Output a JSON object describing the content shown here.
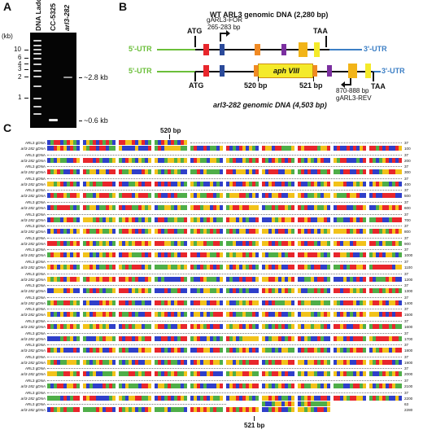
{
  "panels": {
    "a": "A",
    "b": "B",
    "c": "C"
  },
  "gel": {
    "kb_header": "(kb)",
    "lanes": [
      "DNA Ladder",
      "CC-5325",
      "arl3-282"
    ],
    "ladder_marks": [
      "10",
      "6",
      "4",
      "3",
      "2",
      "1"
    ],
    "band_labels": [
      "~2.8 kb",
      "~0.6 kb"
    ]
  },
  "diagram": {
    "wt_title": "WT ARL3 genomic DNA (2,280 bp)",
    "mut_title": "arl3-282 genomic DNA (4,503 bp)",
    "utr5": "5'-UTR",
    "utr3": "3'-UTR",
    "start_codon": "ATG",
    "stop_codon": "TAA",
    "fwd_primer": "gARL3-FOR",
    "fwd_range": "265-283 bp",
    "rev_range": "870-888 bp",
    "rev_primer": "gARL3-REV",
    "insert": "aph VIII",
    "junction_left": "520 bp",
    "junction_right": "521 bp",
    "colors": {
      "utr5": "#6bbf3a",
      "utr3": "#3c7fc5",
      "exon_red": "#e8262c",
      "exon_blue": "#2b4a9a",
      "exon_orange": "#f08a24",
      "exon_purple": "#7b2fa0",
      "exon_gold": "#f2b418",
      "exon_yellow": "#f4ea2a",
      "insert": "#f4ea2a"
    }
  },
  "alignment": {
    "top_marker": "520 bp",
    "bottom_marker": "521 bp",
    "row_labels": [
      "ARL3 gDNA",
      "arl3-282 gDNA"
    ],
    "wt_count": "37",
    "mut_counts": [
      "100",
      "200",
      "300",
      "400",
      "500",
      "600",
      "700",
      "800",
      "900",
      "1000",
      "1100",
      "1200",
      "1300",
      "1400",
      "1500",
      "1600",
      "1700",
      "1800",
      "1900",
      "2000",
      "2100",
      "2200",
      "2280"
    ],
    "last_wt_count": "63",
    "nucleotide_colors": {
      "A": "#e8262c",
      "C": "#2f3fc9",
      "G": "#4fae48",
      "T": "#f2c21a"
    }
  }
}
